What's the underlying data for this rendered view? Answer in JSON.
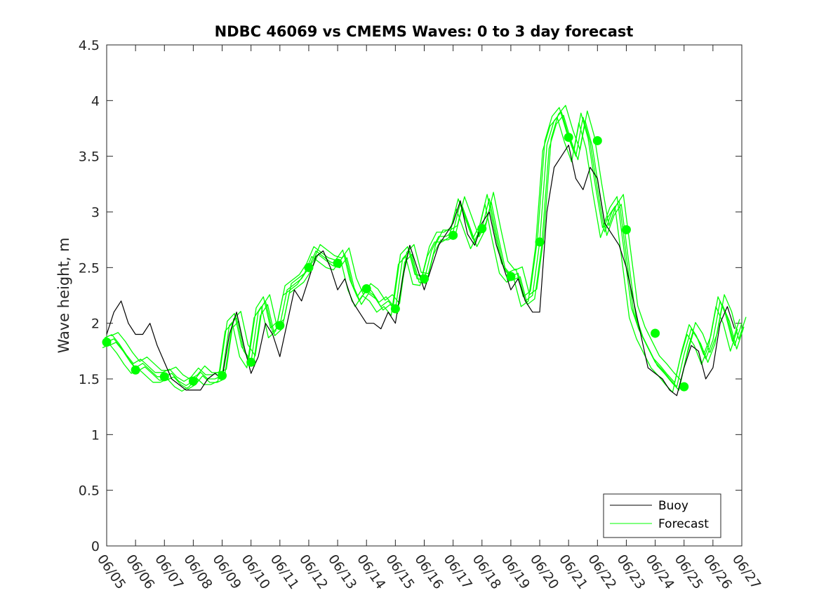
{
  "chart_data": {
    "type": "line",
    "title": "NDBC 46069 vs CMEMS Waves: 0 to 3 day forecast",
    "xlabel": "",
    "ylabel": "Wave height, m",
    "xlim": [
      0,
      22
    ],
    "ylim": [
      0,
      4.5
    ],
    "x_tick_labels": [
      "06/05",
      "06/06",
      "06/07",
      "06/08",
      "06/09",
      "06/10",
      "06/11",
      "06/12",
      "06/13",
      "06/14",
      "06/15",
      "06/16",
      "06/17",
      "06/18",
      "06/19",
      "06/20",
      "06/21",
      "06/22",
      "06/23",
      "06/24",
      "06/25",
      "06/26",
      "06/27"
    ],
    "y_ticks": [
      0,
      0.5,
      1,
      1.5,
      2,
      2.5,
      3,
      3.5,
      4,
      4.5
    ],
    "y_tick_labels": [
      "0",
      "0.5",
      "1",
      "1.5",
      "2",
      "2.5",
      "3",
      "3.5",
      "4",
      "4.5"
    ],
    "grid": false,
    "legend_position": "bottom-right",
    "colors": {
      "buoy": "#000000",
      "forecast": "#00ff00"
    },
    "series": [
      {
        "name": "Buoy",
        "x": [
          0,
          0.25,
          0.5,
          0.75,
          1,
          1.25,
          1.5,
          1.75,
          2,
          2.25,
          2.5,
          2.75,
          3,
          3.25,
          3.5,
          3.75,
          4,
          4.25,
          4.5,
          4.75,
          5,
          5.25,
          5.5,
          5.75,
          6,
          6.25,
          6.5,
          6.75,
          7,
          7.25,
          7.5,
          7.75,
          8,
          8.25,
          8.5,
          8.75,
          9,
          9.25,
          9.5,
          9.75,
          10,
          10.25,
          10.5,
          10.75,
          11,
          11.25,
          11.5,
          11.75,
          12,
          12.25,
          12.5,
          12.75,
          13,
          13.25,
          13.5,
          13.75,
          14,
          14.25,
          14.5,
          14.75,
          15,
          15.25,
          15.5,
          15.75,
          16,
          16.25,
          16.5,
          16.75,
          17,
          17.25,
          17.5,
          17.75,
          18,
          18.25,
          18.5,
          18.75,
          19,
          19.25,
          19.5,
          19.75,
          20,
          20.25,
          20.5,
          20.75,
          21,
          21.25,
          21.5,
          21.75
        ],
        "values": [
          1.9,
          2.1,
          2.2,
          2.0,
          1.9,
          1.9,
          2.0,
          1.8,
          1.65,
          1.5,
          1.45,
          1.4,
          1.4,
          1.4,
          1.5,
          1.55,
          1.5,
          1.9,
          2.1,
          1.8,
          1.55,
          1.7,
          2.0,
          1.9,
          1.7,
          2.0,
          2.3,
          2.2,
          2.4,
          2.6,
          2.65,
          2.5,
          2.3,
          2.4,
          2.2,
          2.1,
          2.0,
          2.0,
          1.95,
          2.1,
          2.0,
          2.4,
          2.7,
          2.5,
          2.3,
          2.5,
          2.7,
          2.8,
          2.9,
          3.1,
          2.8,
          2.7,
          2.9,
          3.0,
          2.7,
          2.5,
          2.3,
          2.4,
          2.2,
          2.1,
          2.1,
          3.0,
          3.4,
          3.5,
          3.6,
          3.3,
          3.2,
          3.4,
          3.3,
          2.9,
          2.8,
          2.7,
          2.5,
          2.2,
          1.9,
          1.6,
          1.55,
          1.5,
          1.4,
          1.35,
          1.6,
          1.8,
          1.75,
          1.5,
          1.6,
          2.0,
          2.15,
          1.95
        ]
      },
      {
        "name": "Forecast",
        "x": [
          0,
          0.25,
          0.5,
          0.75,
          1,
          1.25,
          1.5,
          1.75,
          2,
          2.25,
          2.5,
          2.75,
          3,
          3.25,
          3.5,
          3.75,
          4,
          4.25,
          4.5,
          4.75,
          5,
          5.25,
          5.5,
          5.75,
          6,
          6.25,
          6.5,
          6.75,
          7,
          7.25,
          7.5,
          7.75,
          8,
          8.25,
          8.5,
          8.75,
          9,
          9.25,
          9.5,
          9.75,
          10,
          10.25,
          10.5,
          10.75,
          11,
          11.25,
          11.5,
          11.75,
          12,
          12.25,
          12.5,
          12.75,
          13,
          13.25,
          13.5,
          13.75,
          14,
          14.25,
          14.5,
          14.75,
          15,
          15.25,
          15.5,
          15.75,
          16,
          16.25,
          16.5,
          16.75,
          17,
          17.25,
          17.5,
          17.75,
          18,
          18.25,
          18.5,
          18.75,
          19,
          19.25,
          19.5,
          19.75,
          20,
          20.25,
          20.5,
          20.75,
          21,
          21.25,
          21.5,
          21.75,
          22
        ],
        "values": [
          1.83,
          1.86,
          1.78,
          1.68,
          1.6,
          1.64,
          1.58,
          1.52,
          1.52,
          1.55,
          1.48,
          1.44,
          1.48,
          1.56,
          1.5,
          1.5,
          1.53,
          1.98,
          2.05,
          1.75,
          1.65,
          2.1,
          2.2,
          1.92,
          1.98,
          2.3,
          2.35,
          2.4,
          2.5,
          2.65,
          2.6,
          2.55,
          2.53,
          2.62,
          2.35,
          2.2,
          2.3,
          2.25,
          2.15,
          2.2,
          2.12,
          2.58,
          2.65,
          2.4,
          2.39,
          2.65,
          2.78,
          2.78,
          2.82,
          3.08,
          2.9,
          2.72,
          2.85,
          3.12,
          2.8,
          2.5,
          2.42,
          2.45,
          2.2,
          2.25,
          2.73,
          3.6,
          3.82,
          3.9,
          3.68,
          3.5,
          3.85,
          3.62,
          3.2,
          2.82,
          3.0,
          3.1,
          2.6,
          2.1,
          1.91,
          1.78,
          1.65,
          1.58,
          1.5,
          1.43,
          1.72,
          1.95,
          1.85,
          1.68,
          1.85,
          2.2,
          2.05,
          1.8,
          2.0
        ]
      }
    ],
    "markers": {
      "name": "Forecast",
      "x": [
        0,
        1,
        2,
        3,
        4,
        5,
        6,
        7,
        8,
        9,
        10,
        11,
        12,
        13,
        14,
        15,
        16,
        17,
        18,
        19,
        20,
        21
      ],
      "values": [
        1.83,
        1.58,
        1.52,
        1.48,
        1.53,
        1.65,
        1.98,
        2.5,
        2.54,
        2.31,
        2.13,
        2.4,
        2.79,
        2.85,
        2.42,
        2.73,
        3.67,
        3.64,
        2.84,
        1.91,
        1.43,
        null
      ]
    },
    "legend": [
      {
        "label": "Buoy",
        "color": "#000000"
      },
      {
        "label": "Forecast",
        "color": "#00ff00"
      }
    ]
  }
}
